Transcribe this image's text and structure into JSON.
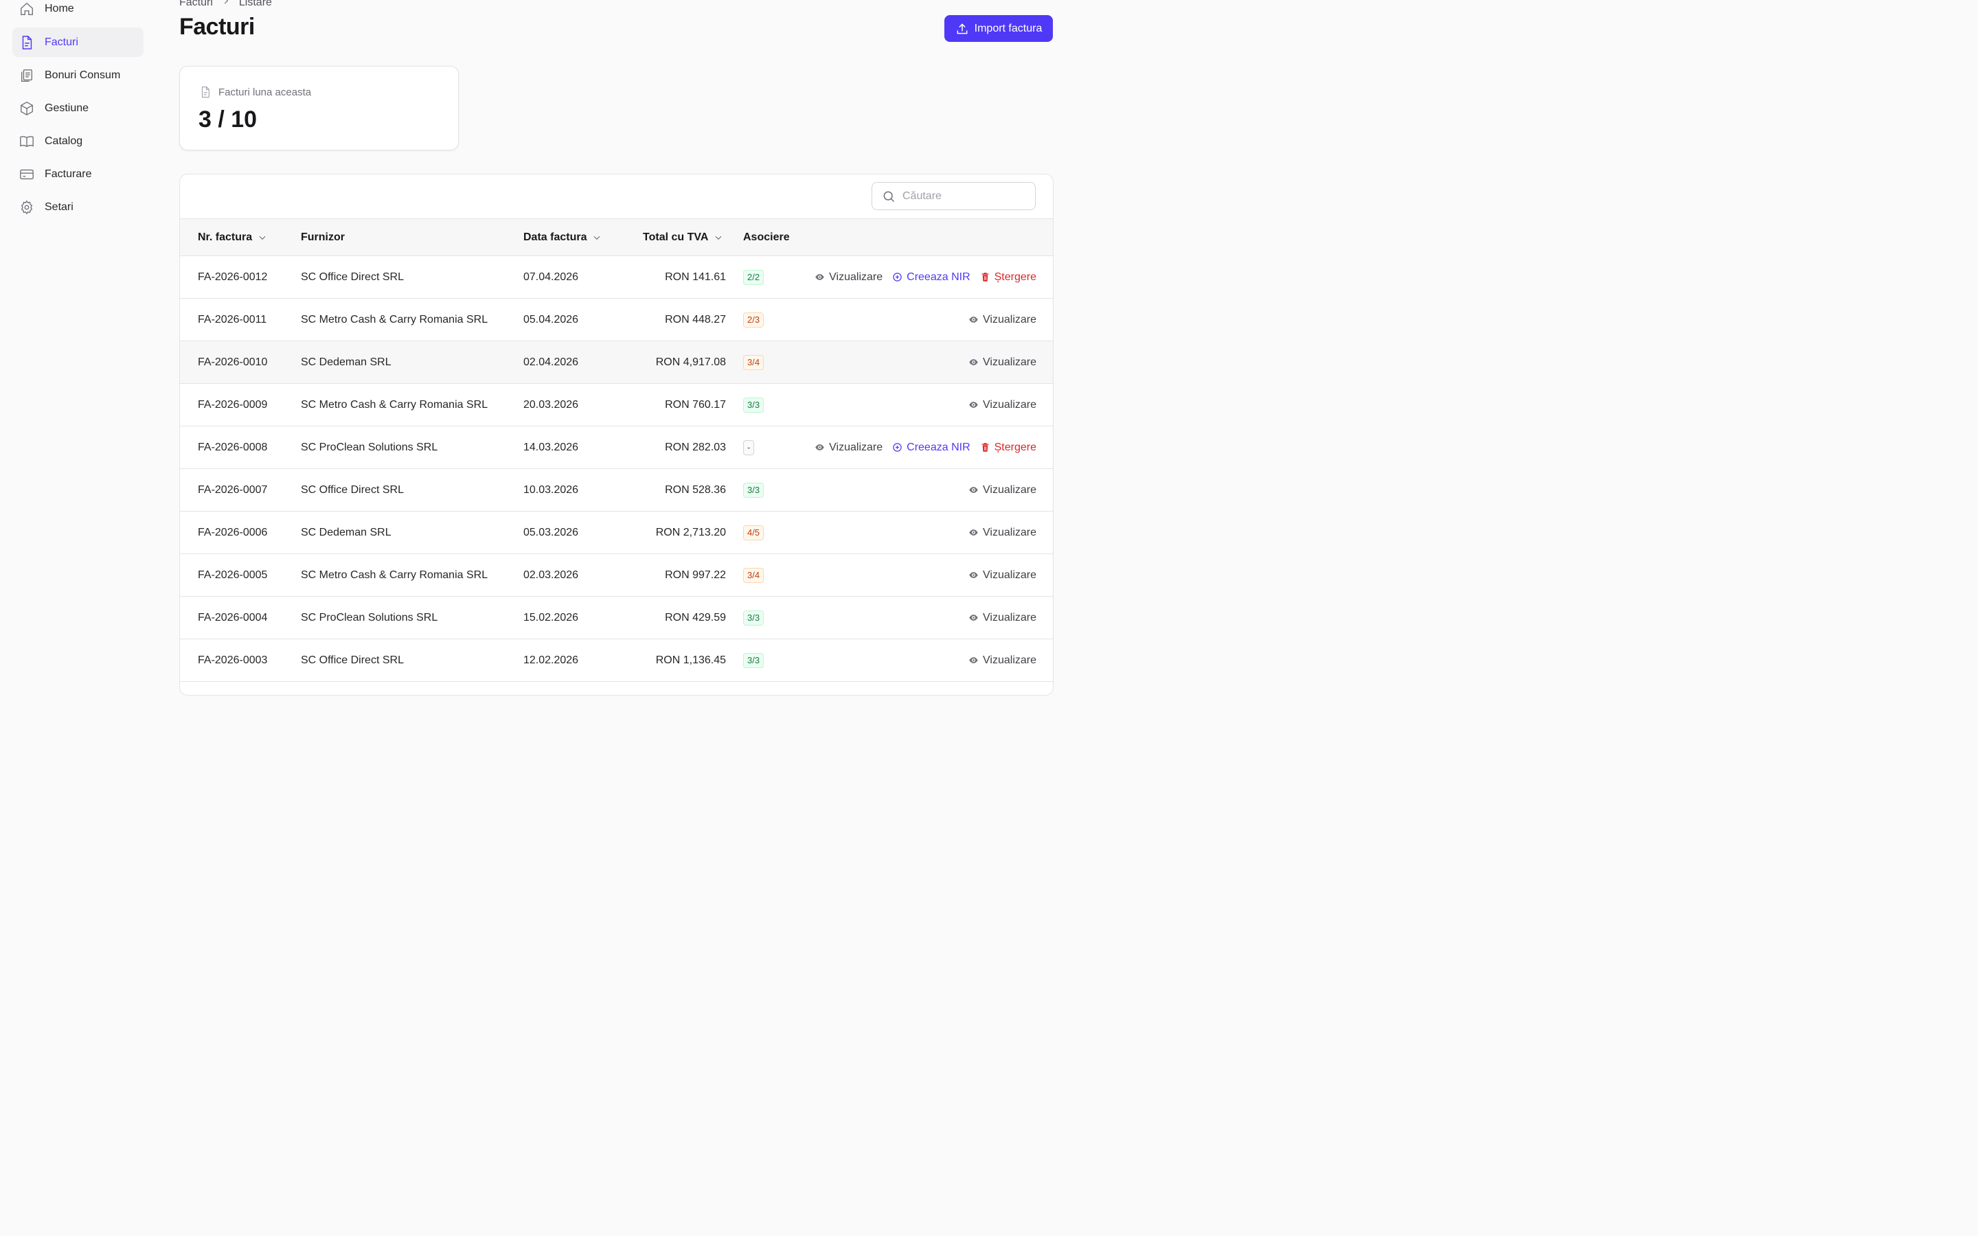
{
  "sidebar": {
    "items": [
      {
        "label": "Home",
        "icon": "home-icon",
        "active": false
      },
      {
        "label": "Facturi",
        "icon": "file-text-icon",
        "active": true
      },
      {
        "label": "Bonuri Consum",
        "icon": "receipt-icon",
        "active": false
      },
      {
        "label": "Gestiune",
        "icon": "box-icon",
        "active": false
      },
      {
        "label": "Catalog",
        "icon": "book-icon",
        "active": false
      },
      {
        "label": "Facturare",
        "icon": "credit-card-icon",
        "active": false
      },
      {
        "label": "Setari",
        "icon": "gear-icon",
        "active": false
      }
    ]
  },
  "breadcrumb": {
    "first": "Facturi",
    "second": "Listare"
  },
  "header": {
    "title": "Facturi",
    "import_label": "Import factura"
  },
  "stat": {
    "label": "Facturi luna aceasta",
    "value": "3 / 10"
  },
  "search": {
    "placeholder": "Căutare",
    "value": ""
  },
  "table": {
    "columns": {
      "nr": "Nr. factura",
      "furnizor": "Furnizor",
      "data": "Data factura",
      "total": "Total cu TVA",
      "asociere": "Asociere"
    },
    "actions": {
      "view": "Vizualizare",
      "nir": "Creeaza NIR",
      "delete": "Ștergere"
    },
    "rows": [
      {
        "nr": "FA-2026-0012",
        "furnizor": "SC Office Direct SRL",
        "data": "07.04.2026",
        "total": "RON 141.61",
        "asociere": "2/2",
        "status": "green",
        "full_actions": true
      },
      {
        "nr": "FA-2026-0011",
        "furnizor": "SC Metro Cash & Carry Romania SRL",
        "data": "05.04.2026",
        "total": "RON 448.27",
        "asociere": "2/3",
        "status": "orange",
        "full_actions": false
      },
      {
        "nr": "FA-2026-0010",
        "furnizor": "SC Dedeman SRL",
        "data": "02.04.2026",
        "total": "RON 4,917.08",
        "asociere": "3/4",
        "status": "orange",
        "full_actions": false
      },
      {
        "nr": "FA-2026-0009",
        "furnizor": "SC Metro Cash & Carry Romania SRL",
        "data": "20.03.2026",
        "total": "RON 760.17",
        "asociere": "3/3",
        "status": "green",
        "full_actions": false
      },
      {
        "nr": "FA-2026-0008",
        "furnizor": "SC ProClean Solutions SRL",
        "data": "14.03.2026",
        "total": "RON 282.03",
        "asociere": "-",
        "status": "gray",
        "full_actions": true
      },
      {
        "nr": "FA-2026-0007",
        "furnizor": "SC Office Direct SRL",
        "data": "10.03.2026",
        "total": "RON 528.36",
        "asociere": "3/3",
        "status": "green",
        "full_actions": false
      },
      {
        "nr": "FA-2026-0006",
        "furnizor": "SC Dedeman SRL",
        "data": "05.03.2026",
        "total": "RON 2,713.20",
        "asociere": "4/5",
        "status": "orange",
        "full_actions": false
      },
      {
        "nr": "FA-2026-0005",
        "furnizor": "SC Metro Cash & Carry Romania SRL",
        "data": "02.03.2026",
        "total": "RON 997.22",
        "asociere": "3/4",
        "status": "orange",
        "full_actions": false
      },
      {
        "nr": "FA-2026-0004",
        "furnizor": "SC ProClean Solutions SRL",
        "data": "15.02.2026",
        "total": "RON 429.59",
        "asociere": "3/3",
        "status": "green",
        "full_actions": false
      },
      {
        "nr": "FA-2026-0003",
        "furnizor": "SC Office Direct SRL",
        "data": "12.02.2026",
        "total": "RON 1,136.45",
        "asociere": "3/3",
        "status": "green",
        "full_actions": false
      }
    ]
  },
  "colors": {
    "accent": "#4f39f6",
    "danger": "#dc2626",
    "success": "#15803d",
    "warning": "#c2410c"
  }
}
